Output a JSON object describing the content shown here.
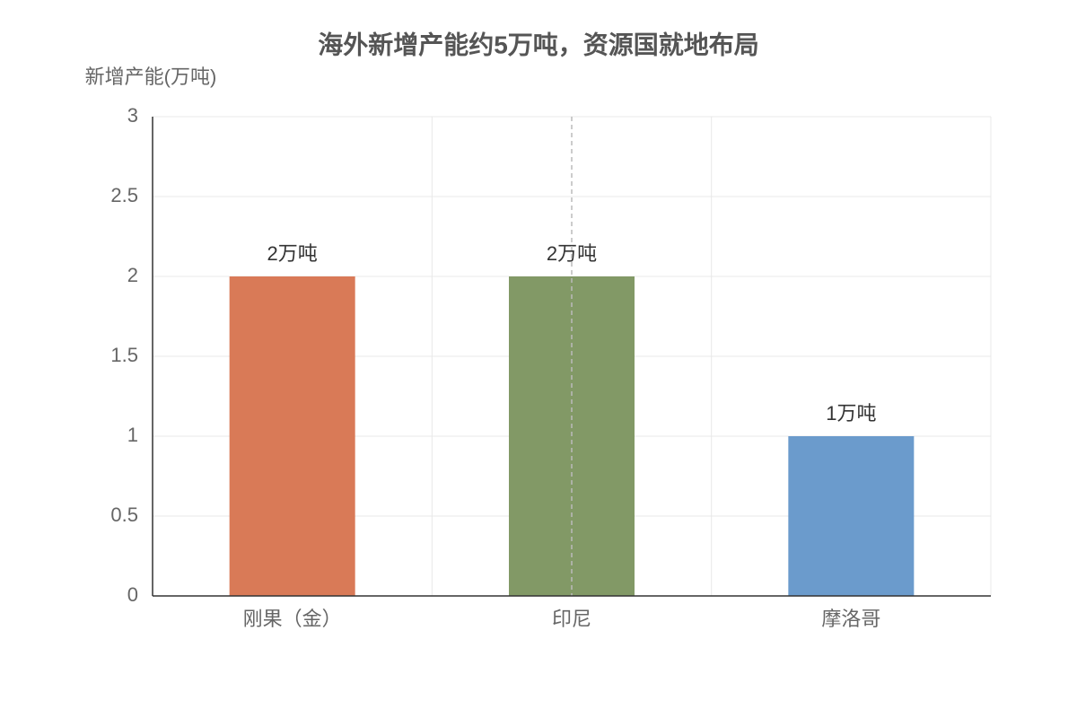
{
  "chart_data": {
    "type": "bar",
    "title": "海外新增产能约5万吨，资源国就地布局",
    "y_label": "新增产能(万吨)",
    "categories": [
      "刚果（金）",
      "印尼",
      "摩洛哥"
    ],
    "values": [
      2,
      2,
      1
    ],
    "value_labels": [
      "2万吨",
      "2万吨",
      "1万吨"
    ],
    "colors": [
      "#d97a57",
      "#829966",
      "#6b9bcc"
    ],
    "ylim": [
      0,
      3
    ],
    "yticks": [
      0,
      0.5,
      1,
      1.5,
      2,
      2.5,
      3
    ],
    "grid": true
  }
}
